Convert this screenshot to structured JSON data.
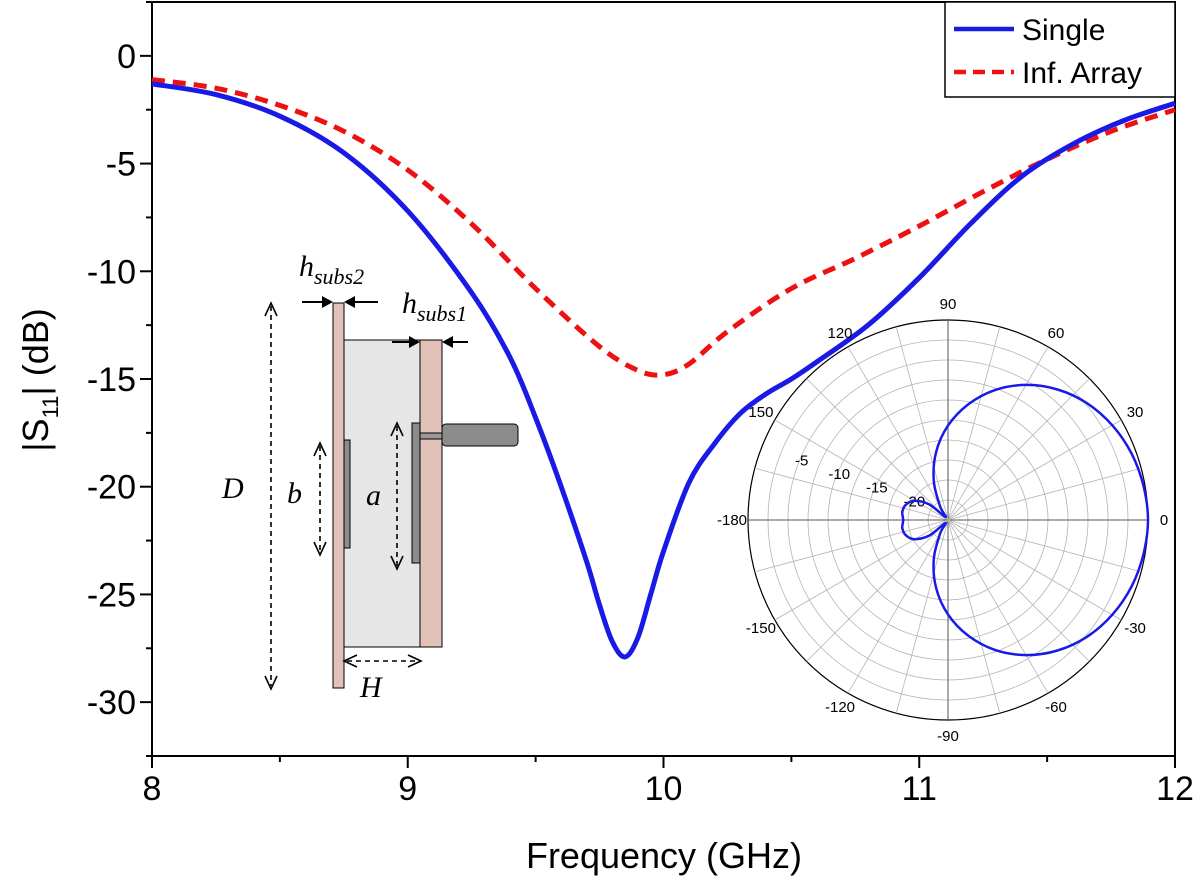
{
  "chart_data": [
    {
      "type": "line",
      "xlabel": "Frequency (GHz)",
      "ylabel_main": "|S",
      "ylabel_sub": "11",
      "ylabel_tail": "| (dB)",
      "xlim": [
        8,
        12
      ],
      "ylim": [
        -32.5,
        2.5
      ],
      "xticks": [
        8,
        9,
        10,
        11,
        12
      ],
      "yticks": [
        0,
        -5,
        -10,
        -15,
        -20,
        -25,
        -30
      ],
      "grid": false,
      "legend_position": "top-right",
      "series": [
        {
          "name": "Single",
          "color": "#1a1ae6",
          "style": "solid",
          "x": [
            8.0,
            8.25,
            8.5,
            8.75,
            9.0,
            9.25,
            9.4,
            9.5,
            9.6,
            9.7,
            9.75,
            9.8,
            9.85,
            9.9,
            9.95,
            10.0,
            10.1,
            10.2,
            10.3,
            10.4,
            10.5,
            10.6,
            10.8,
            11.0,
            11.2,
            11.4,
            11.6,
            11.8,
            12.0
          ],
          "y": [
            -1.3,
            -1.8,
            -2.8,
            -4.5,
            -7.2,
            -11.0,
            -14.0,
            -16.8,
            -20.0,
            -23.5,
            -25.5,
            -27.2,
            -27.9,
            -27.0,
            -25.0,
            -23.0,
            -19.8,
            -18.0,
            -16.6,
            -15.7,
            -15.0,
            -14.2,
            -12.5,
            -10.3,
            -7.8,
            -5.6,
            -4.1,
            -3.0,
            -2.2
          ]
        },
        {
          "name": "Inf. Array",
          "color": "#ee1111",
          "style": "dashed",
          "x": [
            8.0,
            8.25,
            8.5,
            8.75,
            9.0,
            9.25,
            9.5,
            9.75,
            9.9,
            10.0,
            10.1,
            10.25,
            10.5,
            10.75,
            11.0,
            11.25,
            11.5,
            11.75,
            12.0
          ],
          "y": [
            -1.1,
            -1.5,
            -2.3,
            -3.5,
            -5.3,
            -7.8,
            -10.8,
            -13.5,
            -14.6,
            -14.8,
            -14.3,
            -12.8,
            -10.8,
            -9.4,
            -7.9,
            -6.3,
            -4.8,
            -3.5,
            -2.5
          ]
        }
      ]
    },
    {
      "type": "line",
      "subtype": "polar",
      "angle_labels": [
        "90",
        "60",
        "30",
        "0",
        "-30",
        "-60",
        "-90",
        "-120",
        "-150",
        "-180",
        "150",
        "120"
      ],
      "radial_labels": [
        "-5",
        "-10",
        "-15",
        "-20"
      ],
      "rlim": [
        -25,
        0
      ],
      "series": [
        {
          "color": "#1a1ae6",
          "style": "solid",
          "theta_deg": [
            0,
            10,
            20,
            30,
            40,
            50,
            60,
            70,
            80,
            90,
            100,
            110,
            120,
            130,
            140,
            150,
            160,
            170,
            180,
            190,
            200,
            210,
            220,
            230,
            240,
            250,
            260,
            270,
            280,
            290,
            300,
            310,
            320,
            330,
            340,
            350
          ],
          "r_db": [
            0.0,
            -0.2,
            -0.6,
            -1.3,
            -2.3,
            -3.7,
            -5.5,
            -7.7,
            -10.3,
            -13.2,
            -16.4,
            -19.8,
            -23.0,
            -24.5,
            -22.0,
            -20.2,
            -19.4,
            -19.2,
            -19.4,
            -19.2,
            -19.4,
            -20.2,
            -22.0,
            -24.5,
            -23.0,
            -19.8,
            -16.4,
            -13.2,
            -10.3,
            -7.7,
            -5.5,
            -3.7,
            -2.3,
            -1.3,
            -0.6,
            -0.2
          ]
        }
      ]
    }
  ],
  "legend": {
    "single_label": "Single",
    "array_label": "Inf. Array"
  },
  "inset": {
    "h2_main": "h",
    "h2_sub": "subs2",
    "h1_main": "h",
    "h1_sub": "subs1",
    "D": "D",
    "b": "b",
    "a": "a",
    "H": "H"
  }
}
